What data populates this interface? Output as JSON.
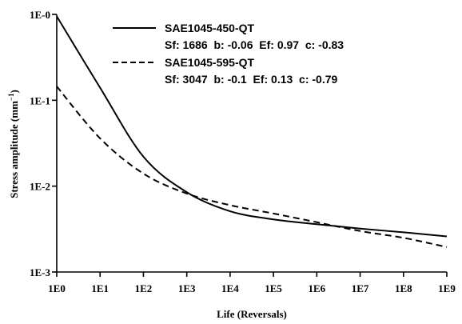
{
  "chart_data": {
    "type": "line",
    "xlabel": "Life (Reversals)",
    "ylabel_main": "Stress amplitude (mm",
    "ylabel_sup": "−1",
    "ylabel_close": ")",
    "x_scale": "log",
    "y_scale": "log",
    "xlim": [
      1,
      1000000000
    ],
    "ylim": [
      0.001,
      1
    ],
    "x_ticks": [
      {
        "value": 1,
        "label": "1E0"
      },
      {
        "value": 10,
        "label": "1E1"
      },
      {
        "value": 100,
        "label": "1E2"
      },
      {
        "value": 1000,
        "label": "1E3"
      },
      {
        "value": 10000,
        "label": "1E4"
      },
      {
        "value": 100000,
        "label": "1E5"
      },
      {
        "value": 1000000,
        "label": "1E6"
      },
      {
        "value": 10000000,
        "label": "1E7"
      },
      {
        "value": 100000000,
        "label": "1E8"
      },
      {
        "value": 1000000000,
        "label": "1E9"
      }
    ],
    "y_ticks": [
      {
        "value": 1,
        "label": "1E-0"
      },
      {
        "value": 0.1,
        "label": "1E-1"
      },
      {
        "value": 0.01,
        "label": "1E-2"
      },
      {
        "value": 0.001,
        "label": "1E-3"
      }
    ],
    "grid": false,
    "legend_position": "top-right",
    "series": [
      {
        "name": "SAE1045-450-QT",
        "params_text": "Sf: 1686  b: -0.06  Ef: 0.97  c: -0.83",
        "line_style": "solid",
        "color": "#000000",
        "x": [
          1,
          10,
          100,
          1000,
          10000,
          100000,
          1000000,
          10000000,
          100000000,
          1000000000
        ],
        "y": [
          0.95,
          0.14,
          0.022,
          0.0085,
          0.0051,
          0.0041,
          0.0036,
          0.0032,
          0.0029,
          0.0026
        ]
      },
      {
        "name": "SAE1045-595-QT",
        "params_text": "Sf: 3047  b: -0.1  Ef: 0.13  c: -0.79",
        "line_style": "dashed",
        "color": "#000000",
        "x": [
          1,
          10,
          100,
          1000,
          10000,
          100000,
          1000000,
          10000000,
          100000000,
          1000000000
        ],
        "y": [
          0.145,
          0.036,
          0.014,
          0.0082,
          0.006,
          0.0048,
          0.0038,
          0.003,
          0.0025,
          0.00195
        ]
      }
    ]
  }
}
